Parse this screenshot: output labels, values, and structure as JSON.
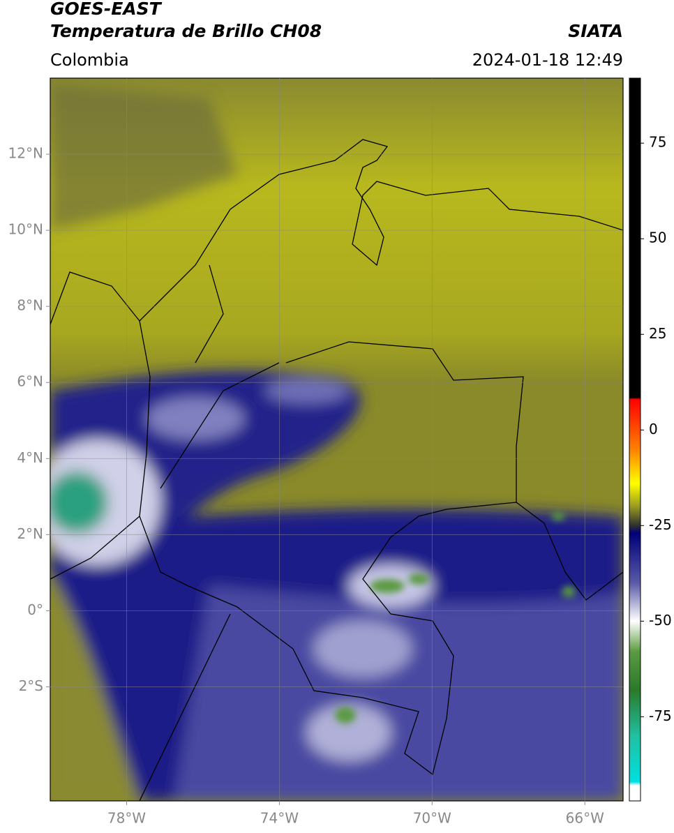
{
  "header": {
    "satellite": "GOES-EAST",
    "product": "Temperatura de Brillo CH08",
    "source": "SIATA",
    "region": "Colombia",
    "timestamp": "2024-01-18 12:49"
  },
  "map": {
    "xlim": [
      -80,
      -65
    ],
    "ylim": [
      -5,
      14
    ],
    "grid": true,
    "xticks": [
      {
        "value": -78,
        "label": "78°W"
      },
      {
        "value": -74,
        "label": "74°W"
      },
      {
        "value": -70,
        "label": "70°W"
      },
      {
        "value": -66,
        "label": "66°W"
      }
    ],
    "yticks": [
      {
        "value": 12,
        "label": "12°N"
      },
      {
        "value": 10,
        "label": "10°N"
      },
      {
        "value": 8,
        "label": "8°N"
      },
      {
        "value": 6,
        "label": "6°N"
      },
      {
        "value": 4,
        "label": "4°N"
      },
      {
        "value": 2,
        "label": "2°N"
      },
      {
        "value": 0,
        "label": "0°"
      },
      {
        "value": -2,
        "label": "2°S"
      }
    ]
  },
  "colorbar": {
    "clim": [
      -97,
      92
    ],
    "ticks": [
      75,
      50,
      25,
      0,
      -25,
      -50,
      -75
    ],
    "colormap": [
      {
        "value": 92,
        "color": "#000000"
      },
      {
        "value": 8.5,
        "color": "#000000"
      },
      {
        "value": 8,
        "color": "#ff0000"
      },
      {
        "value": -5,
        "color": "#ff8000"
      },
      {
        "value": -14,
        "color": "#ffff00"
      },
      {
        "value": -20,
        "color": "#9a9a20"
      },
      {
        "value": -25,
        "color": "#303030"
      },
      {
        "value": -27,
        "color": "#00007a"
      },
      {
        "value": -40,
        "color": "#5a5aa8"
      },
      {
        "value": -50,
        "color": "#ffffff"
      },
      {
        "value": -58,
        "color": "#5a9a40"
      },
      {
        "value": -68,
        "color": "#2a7a2a"
      },
      {
        "value": -80,
        "color": "#20c0a0"
      },
      {
        "value": -92,
        "color": "#00e0e0"
      },
      {
        "value": -93,
        "color": "#ffffff"
      },
      {
        "value": -97,
        "color": "#ffffff"
      }
    ]
  }
}
